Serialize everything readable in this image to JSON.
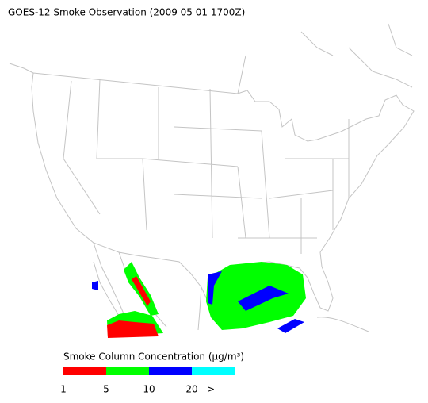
{
  "title": "GOES-12 Smoke Observation (2009 05 01  1700Z)",
  "legend": {
    "title": "Smoke Column Concentration (μg/m³)",
    "colors": [
      "#ff0000",
      "#00ff00",
      "#0000ff",
      "#00ffff"
    ],
    "ticks": [
      1,
      5,
      10,
      20
    ],
    "overflow": ">"
  }
}
